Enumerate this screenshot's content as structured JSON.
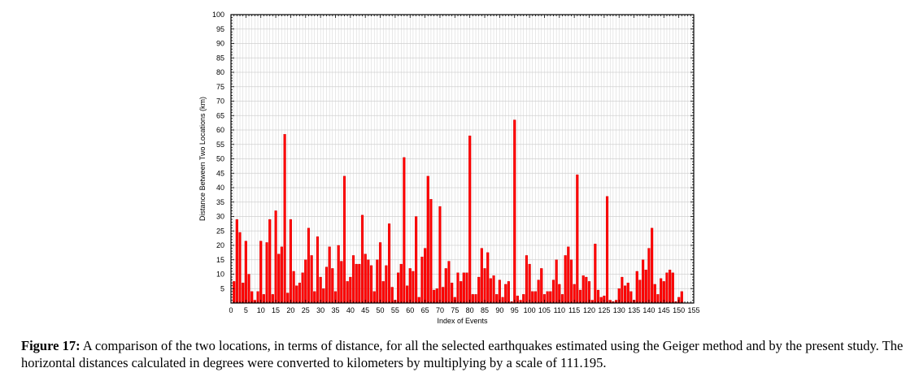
{
  "chart_data": {
    "type": "bar",
    "title": "",
    "xlabel": "Index of Events",
    "ylabel": "Distance Between Two Locations (km)",
    "xlim": [
      0,
      155
    ],
    "ylim": [
      0,
      100
    ],
    "x_ticks": [
      0,
      5,
      10,
      15,
      20,
      25,
      30,
      35,
      40,
      45,
      50,
      55,
      60,
      65,
      70,
      75,
      80,
      85,
      90,
      95,
      100,
      105,
      110,
      115,
      120,
      125,
      130,
      135,
      140,
      145,
      150,
      155
    ],
    "y_ticks": [
      5,
      10,
      15,
      20,
      25,
      30,
      35,
      40,
      45,
      50,
      55,
      60,
      65,
      70,
      75,
      80,
      85,
      90,
      95,
      100
    ],
    "grid": true,
    "bar_color": "#ff0000",
    "bar_edge_color": "#c00000",
    "grid_color": "#d0d0d0",
    "x": [
      1,
      2,
      3,
      4,
      5,
      6,
      7,
      8,
      9,
      10,
      11,
      12,
      13,
      14,
      15,
      16,
      17,
      18,
      19,
      20,
      21,
      22,
      23,
      24,
      25,
      26,
      27,
      28,
      29,
      30,
      31,
      32,
      33,
      34,
      35,
      36,
      37,
      38,
      39,
      40,
      41,
      42,
      43,
      44,
      45,
      46,
      47,
      48,
      49,
      50,
      51,
      52,
      53,
      54,
      55,
      56,
      57,
      58,
      59,
      60,
      61,
      62,
      63,
      64,
      65,
      66,
      67,
      68,
      69,
      70,
      71,
      72,
      73,
      74,
      75,
      76,
      77,
      78,
      79,
      80,
      81,
      82,
      83,
      84,
      85,
      86,
      87,
      88,
      89,
      90,
      91,
      92,
      93,
      94,
      95,
      96,
      97,
      98,
      99,
      100,
      101,
      102,
      103,
      104,
      105,
      106,
      107,
      108,
      109,
      110,
      111,
      112,
      113,
      114,
      115,
      116,
      117,
      118,
      119,
      120,
      121,
      122,
      123,
      124,
      125,
      126,
      127,
      128,
      129,
      130,
      131,
      132,
      133,
      134,
      135,
      136,
      137,
      138,
      139,
      140,
      141,
      142,
      143,
      144,
      145,
      146,
      147,
      148,
      149,
      150,
      151
    ],
    "values": [
      7.5,
      29,
      24.5,
      7,
      21.5,
      10,
      4,
      1,
      4,
      21.5,
      3,
      21,
      29,
      3,
      32,
      17,
      19.5,
      58.5,
      3.5,
      29,
      11,
      6,
      7,
      10.5,
      15,
      26,
      16.5,
      4,
      23,
      9,
      5,
      12.5,
      19.5,
      12,
      4,
      20,
      14.5,
      44,
      7.5,
      9,
      16.5,
      13.5,
      13.5,
      30.5,
      17,
      15,
      13,
      4,
      15,
      21,
      7.5,
      13,
      27.5,
      5.5,
      1,
      10.5,
      13.5,
      50.5,
      6,
      12,
      11,
      30,
      2,
      16,
      19,
      44,
      36,
      4.5,
      5,
      33.5,
      5.5,
      12,
      14.5,
      7,
      2,
      10.5,
      7.5,
      10.5,
      10.5,
      58,
      3,
      3,
      9,
      19,
      12,
      17.5,
      8.5,
      9.5,
      3,
      8,
      2,
      6.5,
      7.5,
      0.5,
      63.5,
      2.5,
      1,
      3,
      16.5,
      13.5,
      4,
      4,
      8,
      12,
      3,
      4,
      4,
      8,
      15,
      6.5,
      3,
      16.5,
      19.5,
      15,
      6.5,
      44.5,
      4.5,
      9.5,
      9,
      7.5,
      1,
      20.5,
      4.5,
      2,
      2.5,
      37,
      1,
      0.5,
      1,
      5,
      9,
      6,
      7,
      4,
      1,
      11,
      8,
      15,
      11.5,
      19,
      26,
      6.5,
      3,
      8.5,
      7.5,
      10.5,
      11.5,
      10.5,
      0.5,
      2,
      4
    ]
  },
  "caption": {
    "label": "Figure 17:",
    "text": " A comparison of the two locations, in terms of distance, for all the selected earthquakes estimated using the Geiger method and by the present study. The horizontal distances calculated in degrees were converted to kilometers by multiplying by a scale of 111.195."
  }
}
